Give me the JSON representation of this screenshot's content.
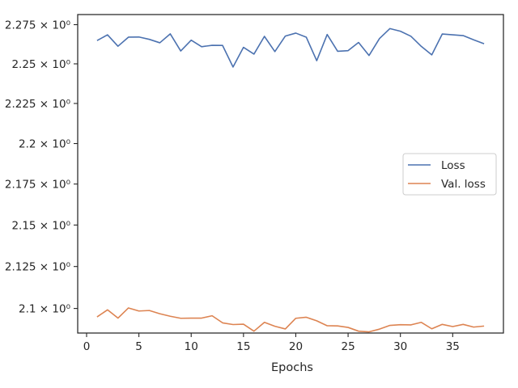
{
  "chart_data": {
    "type": "line",
    "title": "",
    "xlabel": "Epochs",
    "ylabel": "",
    "yscale": "log",
    "xlim": [
      -0.85,
      39.85
    ],
    "ylim": [
      2.0855,
      2.2815
    ],
    "grid": false,
    "legend_placement": "center-right",
    "x_ticks": [
      0,
      5,
      10,
      15,
      20,
      25,
      30,
      35
    ],
    "y_ticks": [
      2.1,
      2.125,
      2.15,
      2.175,
      2.2,
      2.225,
      2.25,
      2.275
    ],
    "y_tick_labels": [
      "2.1 × 10⁰",
      "2.125 × 10⁰",
      "2.15 × 10⁰",
      "2.175 × 10⁰",
      "2.2 × 10⁰",
      "2.225 × 10⁰",
      "2.25 × 10⁰",
      "2.275 × 10⁰"
    ],
    "x": [
      1,
      2,
      3,
      4,
      5,
      6,
      7,
      8,
      9,
      10,
      11,
      12,
      13,
      14,
      15,
      16,
      17,
      18,
      19,
      20,
      21,
      22,
      23,
      24,
      25,
      26,
      27,
      28,
      29,
      30,
      31,
      32,
      33,
      34,
      35,
      36,
      37,
      38
    ],
    "series": [
      {
        "name": "Loss",
        "color": "#4c72b0",
        "values": [
          2.2648,
          2.2685,
          2.2612,
          2.267,
          2.2671,
          2.2656,
          2.2634,
          2.2691,
          2.2582,
          2.2651,
          2.2609,
          2.2618,
          2.2617,
          2.248,
          2.2605,
          2.2562,
          2.2675,
          2.2578,
          2.2677,
          2.2696,
          2.267,
          2.252,
          2.2687,
          2.258,
          2.2584,
          2.2636,
          2.2553,
          2.2661,
          2.2725,
          2.2708,
          2.2676,
          2.2611,
          2.2557,
          2.269,
          2.2685,
          2.268,
          2.2653,
          2.2628
        ]
      },
      {
        "name": "Val. loss",
        "color": "#dd8452",
        "values": [
          2.095,
          2.0992,
          2.0943,
          2.1003,
          2.0985,
          2.0988,
          2.0969,
          2.0954,
          2.0942,
          2.0943,
          2.0943,
          2.0957,
          2.0915,
          2.0905,
          2.0907,
          2.0866,
          2.0918,
          2.0895,
          2.0879,
          2.0942,
          2.0948,
          2.0927,
          2.0898,
          2.0897,
          2.0888,
          2.0866,
          2.0862,
          2.0878,
          2.09,
          2.0904,
          2.0903,
          2.0918,
          2.088,
          2.0906,
          2.0893,
          2.0906,
          2.089,
          2.0896
        ]
      }
    ]
  }
}
